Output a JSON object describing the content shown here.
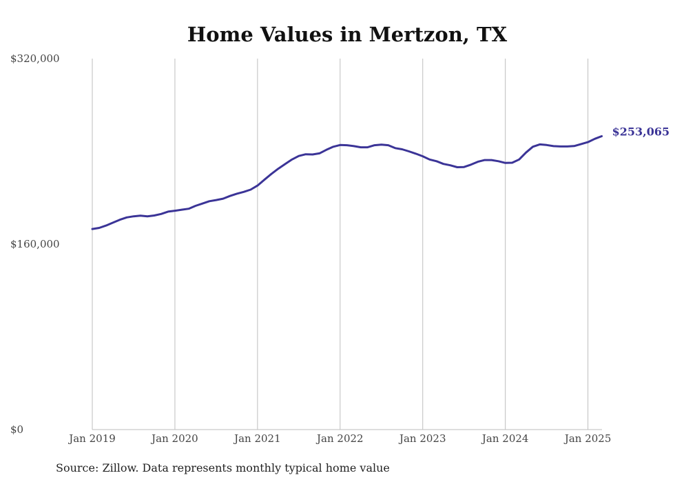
{
  "chart_data": {
    "type": "line",
    "title": "Home Values in Mertzon, TX",
    "xlabel": "",
    "ylabel": "",
    "ylim": [
      0,
      320000
    ],
    "ytick_labels": [
      "$0",
      "$160,000",
      "$320,000"
    ],
    "ytick_values": [
      0,
      160000,
      320000
    ],
    "xtick_labels": [
      "Jan 2019",
      "Jan 2020",
      "Jan 2021",
      "Jan 2022",
      "Jan 2023",
      "Jan 2024",
      "Jan 2025"
    ],
    "xtick_positions": [
      2019,
      2020,
      2021,
      2022,
      2023,
      2024,
      2025
    ],
    "xlim": [
      2019,
      2025.17
    ],
    "grid": "vertical",
    "line_color": "#3b3497",
    "end_label": "$253,065",
    "series": [
      {
        "x": [
          2019.0,
          2019.083,
          2019.167,
          2019.25,
          2019.333,
          2019.417,
          2019.5,
          2019.583,
          2019.667,
          2019.75,
          2019.833,
          2019.917,
          2020.0,
          2020.083,
          2020.167,
          2020.25,
          2020.333,
          2020.417,
          2020.5,
          2020.583,
          2020.667,
          2020.75,
          2020.833,
          2020.917,
          2021.0,
          2021.083,
          2021.167,
          2021.25,
          2021.333,
          2021.417,
          2021.5,
          2021.583,
          2021.667,
          2021.75,
          2021.833,
          2021.917,
          2022.0,
          2022.083,
          2022.167,
          2022.25,
          2022.333,
          2022.417,
          2022.5,
          2022.583,
          2022.667,
          2022.75,
          2022.833,
          2022.917,
          2023.0,
          2023.083,
          2023.167,
          2023.25,
          2023.333,
          2023.417,
          2023.5,
          2023.583,
          2023.667,
          2023.75,
          2023.833,
          2023.917,
          2024.0,
          2024.083,
          2024.167,
          2024.25,
          2024.333,
          2024.417,
          2024.5,
          2024.583,
          2024.667,
          2024.75,
          2024.833,
          2024.917,
          2025.0,
          2025.083,
          2025.167
        ],
        "values": [
          173000,
          174000,
          176000,
          178500,
          181000,
          183000,
          184000,
          184500,
          184000,
          184700,
          186000,
          188000,
          188800,
          189700,
          190500,
          193000,
          195000,
          197000,
          198000,
          199200,
          201500,
          203500,
          205000,
          207000,
          210500,
          215500,
          220500,
          225000,
          229000,
          233000,
          236000,
          237500,
          237300,
          238300,
          241300,
          244000,
          245500,
          245300,
          244500,
          243500,
          243500,
          245300,
          245800,
          245300,
          242800,
          241800,
          240000,
          238000,
          235800,
          233000,
          231500,
          229200,
          228000,
          226300,
          226500,
          228500,
          231000,
          232500,
          232500,
          231500,
          230000,
          230200,
          233000,
          239000,
          244000,
          246000,
          245500,
          244500,
          244200,
          244200,
          244600,
          246300,
          248000,
          250800,
          253065
        ]
      }
    ],
    "source_note": "Source: Zillow. Data represents monthly typical home value"
  }
}
